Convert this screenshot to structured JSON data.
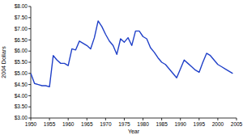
{
  "chart_data": {
    "type": "line",
    "x_label": "Year",
    "y_label": "2004 Dollars",
    "x": [
      1950,
      1951,
      1952,
      1953,
      1954,
      1955,
      1956,
      1957,
      1958,
      1959,
      1960,
      1961,
      1962,
      1963,
      1964,
      1965,
      1966,
      1967,
      1968,
      1969,
      1970,
      1971,
      1972,
      1973,
      1974,
      1975,
      1976,
      1977,
      1978,
      1979,
      1980,
      1981,
      1982,
      1983,
      1984,
      1985,
      1986,
      1987,
      1988,
      1989,
      1990,
      1991,
      1992,
      1993,
      1994,
      1995,
      1996,
      1997,
      1998,
      1999,
      2000,
      2001,
      2002,
      2003,
      2004
    ],
    "values": [
      5.0,
      4.55,
      4.5,
      4.45,
      4.45,
      4.4,
      5.8,
      5.6,
      5.45,
      5.45,
      5.35,
      6.1,
      6.05,
      6.45,
      6.35,
      6.25,
      6.1,
      6.6,
      7.35,
      7.1,
      6.75,
      6.45,
      6.25,
      5.85,
      6.55,
      6.4,
      6.6,
      6.25,
      6.9,
      6.9,
      6.65,
      6.55,
      6.15,
      5.95,
      5.7,
      5.5,
      5.4,
      5.2,
      5.0,
      4.8,
      5.2,
      5.6,
      5.45,
      5.3,
      5.15,
      5.05,
      5.5,
      5.9,
      5.8,
      5.6,
      5.4,
      5.3,
      5.2,
      5.1,
      5.0
    ],
    "color": "#2040c8",
    "xlim": [
      1950,
      2005
    ],
    "xticks": [
      1950,
      1955,
      1960,
      1965,
      1970,
      1975,
      1980,
      1985,
      1990,
      1995,
      2000,
      2005
    ],
    "ylim": [
      3,
      8
    ],
    "yticks": [
      {
        "value": 3,
        "label": "$3.00"
      },
      {
        "value": 3.5,
        "label": "$3.50"
      },
      {
        "value": 4,
        "label": "$4.00"
      },
      {
        "value": 4.5,
        "label": "$4.50"
      },
      {
        "value": 5,
        "label": "$5.00"
      },
      {
        "value": 5.5,
        "label": "$5.50"
      },
      {
        "value": 6,
        "label": "$6.00"
      },
      {
        "value": 6.5,
        "label": "$6.50"
      },
      {
        "value": 7,
        "label": "$7.00"
      },
      {
        "value": 7.5,
        "label": "$7.50"
      },
      {
        "value": 8,
        "label": "$8.00"
      }
    ],
    "grid": false
  }
}
